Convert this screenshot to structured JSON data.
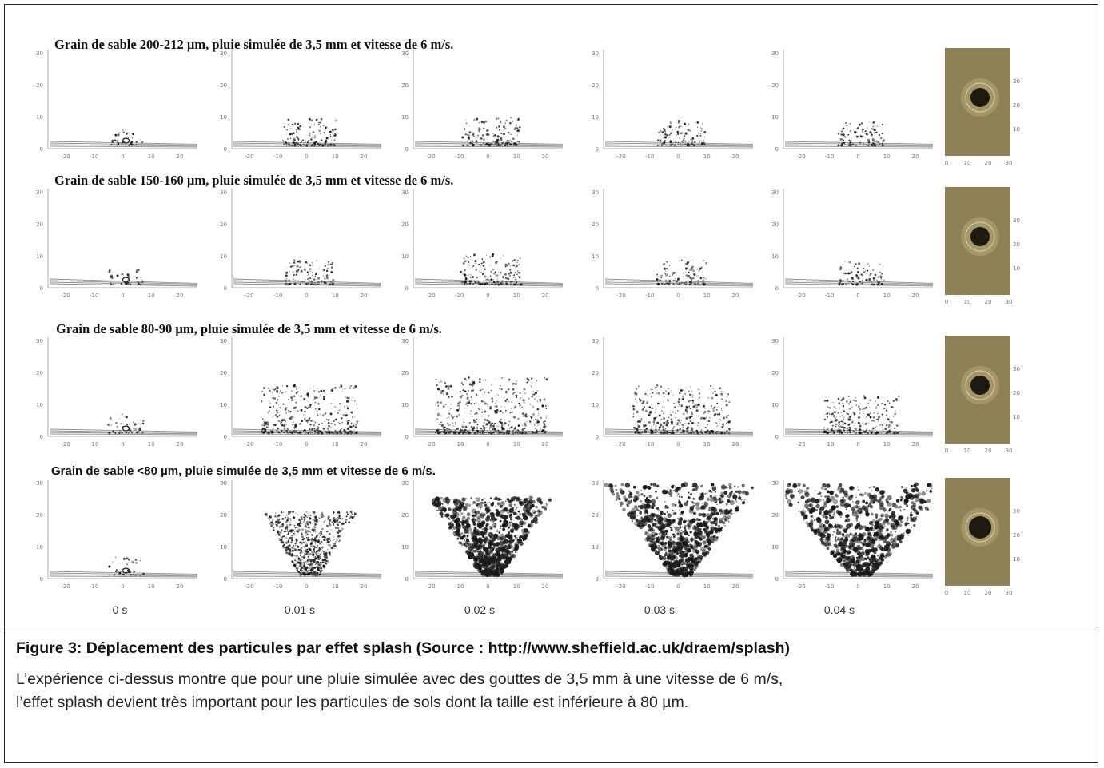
{
  "figure": {
    "row_titles": [
      "Grain de sable  200-212 µm, pluie simulée de 3,5 mm et vitesse de 6 m/s.",
      "Grain de sable  150-160 µm, pluie simulée de 3,5 mm et vitesse de 6 m/s.",
      "Grain de sable  80-90 µm, pluie simulée de 3,5 mm et vitesse de 6 m/s.",
      "Grain de sable <80 µm, pluie simulée de 3,5 mm et vitesse de 6 m/s."
    ],
    "time_labels": [
      "0 s",
      "0.01 s",
      "0.02 s",
      "0.03 s",
      "0.04 s"
    ],
    "y_ticks": [
      "0",
      "10",
      "20",
      "30"
    ],
    "x_ticks": [
      "-20",
      "-10",
      "0",
      "10",
      "20"
    ],
    "photo_y_ticks": [
      "10",
      "20",
      "30"
    ],
    "photo_x_ticks": [
      "0",
      "10",
      "20",
      "30"
    ],
    "colors": {
      "ink": "#1a1a1a",
      "photo_bg": "#8f8157",
      "crater": "#1c1a12"
    }
  },
  "caption": {
    "title": "Figure 3: Déplacement des particules par effet splash (Source : http://www.sheffield.ac.uk/draem/splash)",
    "lines": [
      "L’expérience ci-dessus montre que pour une pluie simulée avec des gouttes de 3,5 mm à une vitesse de 6 m/s,",
      "l’effet splash devient très important pour les particules de sols dont la taille est inférieure à 80 µm."
    ]
  }
}
